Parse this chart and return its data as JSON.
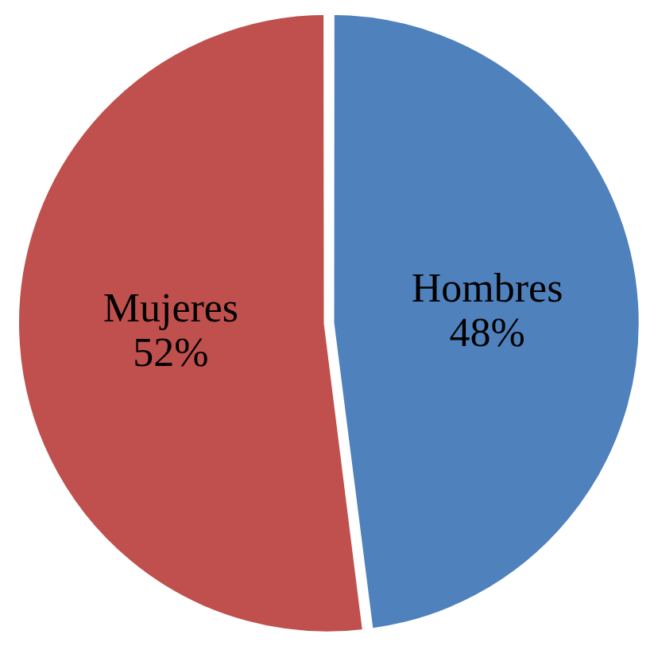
{
  "chart_data": {
    "type": "pie",
    "categories": [
      "Hombres",
      "Mujeres"
    ],
    "values": [
      48,
      52
    ],
    "value_labels": [
      "48%",
      "52%"
    ],
    "colors": [
      "#4f81bd",
      "#c0504d"
    ],
    "legend": false
  }
}
